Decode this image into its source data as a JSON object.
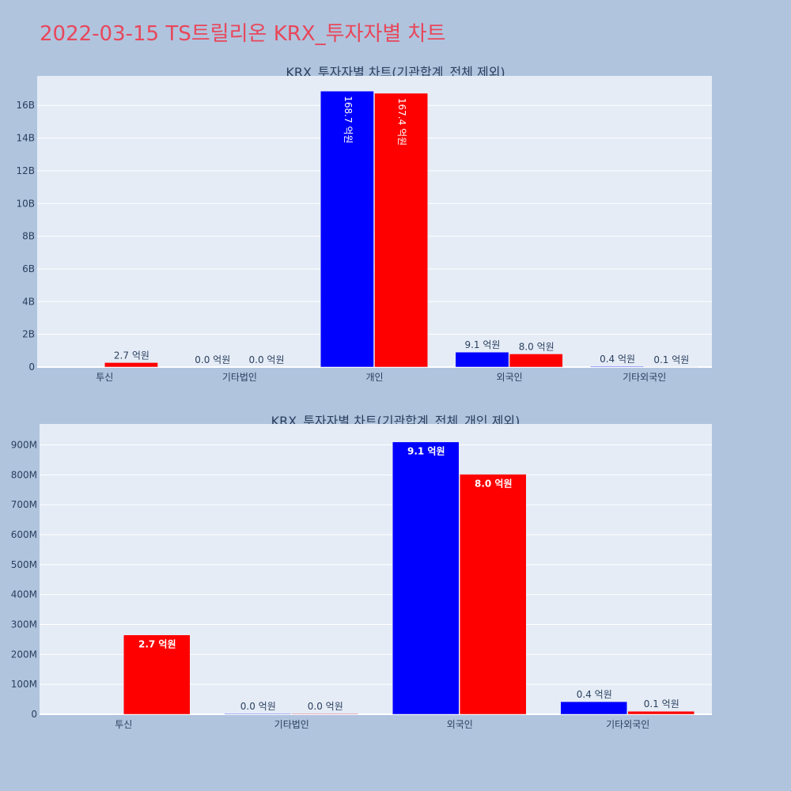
{
  "title": "2022-03-15 TS트릴리온 KRX_투자자별 차트",
  "colors": {
    "buy": "#0000ff",
    "sell": "#ff0000",
    "plot_bg": "#e5ecf6",
    "page_bg": "#b0c4de",
    "title": "#e8475a"
  },
  "chart_data": [
    {
      "type": "bar",
      "title": "KRX_투자자별 차트(기관합계_전체 제외)",
      "categories": [
        "투신",
        "기타법인",
        "개인",
        "외국인",
        "기타외국인"
      ],
      "series": [
        {
          "color": "#0000ff",
          "values": [
            0,
            0,
            16870000000,
            910000000,
            40000000
          ],
          "labels": [
            "",
            "0.0 억원",
            "168.7 억원",
            "9.1 억원",
            "0.4 억원"
          ]
        },
        {
          "color": "#ff0000",
          "values": [
            270000000,
            0,
            16740000000,
            800000000,
            10000000
          ],
          "labels": [
            "2.7 억원",
            "0.0 억원",
            "167.4 억원",
            "8.0 억원",
            "0.1 억원"
          ]
        }
      ],
      "ylim": [
        0,
        17800000000
      ],
      "yticks": [
        0,
        2000000000,
        4000000000,
        6000000000,
        8000000000,
        10000000000,
        12000000000,
        14000000000,
        16000000000
      ],
      "ytick_labels": [
        "0",
        "2B",
        "4B",
        "6B",
        "8B",
        "10B",
        "12B",
        "14B",
        "16B"
      ],
      "grid": true
    },
    {
      "type": "bar",
      "title": "KRX_투자자별 차트(기관합계_전체_개인 제외)",
      "categories": [
        "투신",
        "기타법인",
        "외국인",
        "기타외국인"
      ],
      "series": [
        {
          "color": "#0000ff",
          "values": [
            0,
            2000000,
            910000000,
            42000000
          ],
          "labels": [
            "",
            "0.0 억원",
            "9.1 억원",
            "0.4 억원"
          ]
        },
        {
          "color": "#ff0000",
          "values": [
            265000000,
            2000000,
            802000000,
            10000000
          ],
          "labels": [
            "2.7 억원",
            "0.0 억원",
            "8.0 억원",
            "0.1 억원"
          ]
        }
      ],
      "ylim": [
        0,
        970000000
      ],
      "yticks": [
        0,
        100000000,
        200000000,
        300000000,
        400000000,
        500000000,
        600000000,
        700000000,
        800000000,
        900000000
      ],
      "ytick_labels": [
        "0",
        "100M",
        "200M",
        "300M",
        "400M",
        "500M",
        "600M",
        "700M",
        "800M",
        "900M"
      ],
      "grid": true
    }
  ]
}
